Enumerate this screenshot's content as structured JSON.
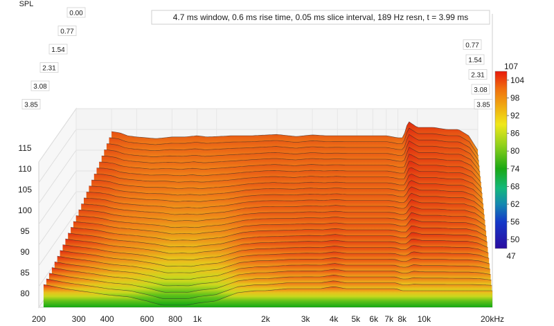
{
  "chart_data": {
    "type": "area",
    "subtype": "cumulative spectral decay (waterfall)",
    "title": "4.7 ms window, 0.6 ms rise time, 0.05 ms slice interval, 189 Hz resn, t = 3.99 ms",
    "xlabel": "",
    "xunit": "kHz",
    "ylabel": "SPL",
    "x_scale": "log",
    "xlim": [
      200,
      20000
    ],
    "ylim": [
      80,
      116
    ],
    "grid": true,
    "x_ticks": [
      {
        "value": 200,
        "label": "200"
      },
      {
        "value": 300,
        "label": "300"
      },
      {
        "value": 400,
        "label": "400"
      },
      {
        "value": 600,
        "label": "600"
      },
      {
        "value": 800,
        "label": "800"
      },
      {
        "value": 1000,
        "label": "1k"
      },
      {
        "value": 2000,
        "label": "2k"
      },
      {
        "value": 3000,
        "label": "3k"
      },
      {
        "value": 4000,
        "label": "4k"
      },
      {
        "value": 5000,
        "label": "5k"
      },
      {
        "value": 6000,
        "label": "6k"
      },
      {
        "value": 7000,
        "label": "7k"
      },
      {
        "value": 8000,
        "label": "8k"
      },
      {
        "value": 10000,
        "label": "10k"
      },
      {
        "value": 20000,
        "label": "20kHz"
      }
    ],
    "y_ticks": [
      80,
      85,
      90,
      95,
      100,
      105,
      110,
      115
    ],
    "time_slices_ms": [
      "0.00",
      "0.77",
      "1.54",
      "2.31",
      "3.08",
      "3.85"
    ],
    "colorbar": {
      "max_label": "107",
      "min_label": "47",
      "ticks": [
        "104",
        "98",
        "92",
        "86",
        "80",
        "74",
        "68",
        "62",
        "56",
        "50"
      ],
      "range": [
        47,
        107
      ]
    },
    "series": [
      {
        "name": "0.00",
        "x": [
          210,
          260,
          300,
          350,
          400,
          500,
          600,
          700,
          800,
          900,
          1000,
          1200,
          1500,
          1800,
          2000,
          2500,
          3000,
          3500,
          4000,
          4500,
          5000,
          5500,
          6000,
          6500,
          7000,
          7500,
          8000,
          8500,
          9000,
          10000,
          11000,
          12000,
          13000,
          14000,
          15000,
          16000,
          17000,
          18000,
          19000,
          20000
        ],
        "values": [
          85.5,
          84.5,
          84,
          83.5,
          83,
          82.5,
          81.5,
          80.5,
          80.5,
          80.5,
          81,
          81.5,
          83.5,
          84,
          84,
          84.5,
          84.5,
          84.5,
          85,
          84.5,
          84.5,
          84.5,
          84.5,
          84.5,
          84.5,
          84.5,
          84,
          84,
          84,
          84,
          84,
          84,
          84,
          84,
          84,
          84,
          84,
          84,
          84,
          84
        ]
      },
      {
        "name": "3.85",
        "x": [
          300,
          330,
          360,
          400,
          450,
          500,
          550,
          600,
          700,
          800,
          900,
          1000,
          1200,
          1500,
          2000,
          2500,
          3000,
          3500,
          4000,
          4500,
          5000,
          6000,
          7000,
          8000,
          8500,
          9000,
          10000,
          12000,
          14000,
          16000,
          18000,
          20000
        ],
        "values": [
          109.5,
          109.2,
          108.5,
          108.2,
          108,
          107.8,
          108,
          108.2,
          108.2,
          108.5,
          108.2,
          108.3,
          108.5,
          108.5,
          108.8,
          108.3,
          108.7,
          108.5,
          108.5,
          108.5,
          108.5,
          108.5,
          108.5,
          108,
          108,
          112,
          110.5,
          110.5,
          110,
          110,
          108.5,
          105
        ]
      }
    ]
  }
}
